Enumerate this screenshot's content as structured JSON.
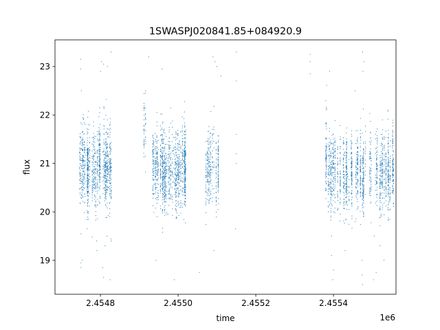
{
  "chart_data": {
    "type": "scatter",
    "title": "1SWASPJ020841.85+084920.9",
    "xlabel": "time",
    "ylabel": "flux",
    "x_offset_label": "1e6",
    "xlim": [
      2454683,
      2455561
    ],
    "ylim": [
      18.3,
      23.55
    ],
    "x_ticks": [
      2454800,
      2455000,
      2455200,
      2455400
    ],
    "x_tick_labels": [
      "2.4548",
      "2.4550",
      "2.4552",
      "2.4554"
    ],
    "y_ticks": [
      19,
      20,
      21,
      22,
      23
    ],
    "y_tick_labels": [
      "19",
      "20",
      "21",
      "22",
      "23"
    ],
    "grid": false,
    "marker_color": "#1f77b4",
    "clusters": [
      {
        "x_range": [
          2454745,
          2454828
        ],
        "center": 20.9,
        "spread": 0.38,
        "count": 1150
      },
      {
        "x_range": [
          2454905,
          2454920
        ],
        "center": 21.8,
        "spread": 0.35,
        "count": 50
      },
      {
        "x_range": [
          2454935,
          2455020
        ],
        "center": 20.9,
        "spread": 0.38,
        "count": 1250
      },
      {
        "x_range": [
          2455070,
          2455110
        ],
        "center": 20.9,
        "spread": 0.38,
        "count": 330
      },
      {
        "x_range": [
          2455380,
          2455490
        ],
        "center": 20.8,
        "spread": 0.36,
        "count": 1100
      },
      {
        "x_range": [
          2455490,
          2455555
        ],
        "center": 20.8,
        "spread": 0.36,
        "count": 650
      }
    ],
    "outlier_points": [
      {
        "x": 2454749,
        "y": 23.15
      },
      {
        "x": 2454749,
        "y": 22.95
      },
      {
        "x": 2454751,
        "y": 22.5
      },
      {
        "x": 2454750,
        "y": 19.55
      },
      {
        "x": 2454750,
        "y": 18.95
      },
      {
        "x": 2454750,
        "y": 18.85
      },
      {
        "x": 2454753,
        "y": 19.0
      },
      {
        "x": 2454766,
        "y": 19.65
      },
      {
        "x": 2454790,
        "y": 19.4
      },
      {
        "x": 2454791,
        "y": 19.2
      },
      {
        "x": 2454800,
        "y": 22.9
      },
      {
        "x": 2454803,
        "y": 23.1
      },
      {
        "x": 2454808,
        "y": 23.05
      },
      {
        "x": 2454806,
        "y": 18.85
      },
      {
        "x": 2454808,
        "y": 18.65
      },
      {
        "x": 2454812,
        "y": 19.3
      },
      {
        "x": 2454817,
        "y": 19.5
      },
      {
        "x": 2454818,
        "y": 23.0
      },
      {
        "x": 2454827,
        "y": 23.3
      },
      {
        "x": 2454825,
        "y": 18.6
      },
      {
        "x": 2454828,
        "y": 19.4
      },
      {
        "x": 2454924,
        "y": 23.2
      },
      {
        "x": 2454959,
        "y": 22.95
      },
      {
        "x": 2454943,
        "y": 19.0
      },
      {
        "x": 2454946,
        "y": 19.9
      },
      {
        "x": 2454990,
        "y": 18.6
      },
      {
        "x": 2455055,
        "y": 18.75
      },
      {
        "x": 2455090,
        "y": 23.2
      },
      {
        "x": 2455095,
        "y": 23.1
      },
      {
        "x": 2455100,
        "y": 23.0
      },
      {
        "x": 2455092,
        "y": 19.2
      },
      {
        "x": 2455110,
        "y": 22.8
      },
      {
        "x": 2455150,
        "y": 23.3
      },
      {
        "x": 2455150,
        "y": 22.7
      },
      {
        "x": 2455148,
        "y": 19.65
      },
      {
        "x": 2455150,
        "y": 21.6
      },
      {
        "x": 2455150,
        "y": 21.2
      },
      {
        "x": 2455150,
        "y": 21.0
      },
      {
        "x": 2455340,
        "y": 23.25
      },
      {
        "x": 2455340,
        "y": 23.1
      },
      {
        "x": 2455340,
        "y": 22.85
      },
      {
        "x": 2455390,
        "y": 22.9
      },
      {
        "x": 2455395,
        "y": 19.5
      },
      {
        "x": 2455395,
        "y": 19.1
      },
      {
        "x": 2455398,
        "y": 18.6
      },
      {
        "x": 2455400,
        "y": 18.8
      },
      {
        "x": 2455475,
        "y": 23.3
      },
      {
        "x": 2455478,
        "y": 23.1
      },
      {
        "x": 2455476,
        "y": 22.9
      },
      {
        "x": 2455475,
        "y": 18.5
      },
      {
        "x": 2455474,
        "y": 18.7
      },
      {
        "x": 2455474,
        "y": 19.0
      },
      {
        "x": 2455503,
        "y": 18.6
      },
      {
        "x": 2455510,
        "y": 18.75
      },
      {
        "x": 2455520,
        "y": 19.3
      },
      {
        "x": 2455530,
        "y": 19.0
      },
      {
        "x": 2455505,
        "y": 19.5
      },
      {
        "x": 2455430,
        "y": 19.2
      },
      {
        "x": 2455456,
        "y": 19.8
      },
      {
        "x": 2455456,
        "y": 22.5
      },
      {
        "x": 2455526,
        "y": 21.9
      },
      {
        "x": 2455540,
        "y": 22.1
      }
    ]
  }
}
